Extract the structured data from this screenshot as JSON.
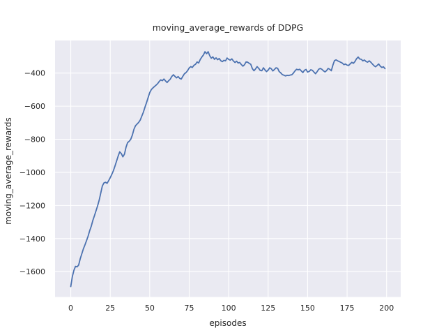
{
  "figure": {
    "background": "#ffffff"
  },
  "chart_data": {
    "type": "line",
    "title": "moving_average_rewards of DDPG",
    "xlabel": "episodes",
    "ylabel": "moving_average_rewards",
    "grid": true,
    "legend": false,
    "plot_bg": "#eaeaf2",
    "grid_color": "#ffffff",
    "text_color": "#262626",
    "line_color": "#4c72b0",
    "xlim": [
      -9.95,
      208.95
    ],
    "ylim": [
      -1753,
      -203
    ],
    "xticks": [
      0,
      25,
      50,
      75,
      100,
      125,
      150,
      175,
      200
    ],
    "yticks": [
      -400,
      -600,
      -800,
      -1000,
      -1200,
      -1400,
      -1600
    ],
    "x_note": "x values are episode indices 0..199",
    "series": [
      {
        "name": "moving_average_rewards",
        "x_start": 0,
        "x_step": 1,
        "values": [
          -1690,
          -1630,
          -1592,
          -1568,
          -1571,
          -1560,
          -1522,
          -1492,
          -1462,
          -1438,
          -1412,
          -1385,
          -1352,
          -1325,
          -1290,
          -1262,
          -1232,
          -1202,
          -1168,
          -1125,
          -1082,
          -1064,
          -1060,
          -1066,
          -1050,
          -1032,
          -1012,
          -990,
          -962,
          -932,
          -902,
          -876,
          -886,
          -906,
          -890,
          -848,
          -820,
          -812,
          -800,
          -775,
          -740,
          -718,
          -708,
          -698,
          -684,
          -660,
          -636,
          -606,
          -578,
          -548,
          -518,
          -500,
          -490,
          -481,
          -473,
          -464,
          -451,
          -441,
          -446,
          -436,
          -447,
          -457,
          -446,
          -437,
          -420,
          -410,
          -420,
          -429,
          -421,
          -432,
          -436,
          -419,
          -404,
          -397,
          -385,
          -369,
          -361,
          -366,
          -353,
          -347,
          -333,
          -339,
          -318,
          -303,
          -291,
          -271,
          -283,
          -271,
          -295,
          -310,
          -302,
          -317,
          -308,
          -319,
          -312,
          -325,
          -331,
          -323,
          -326,
          -309,
          -317,
          -322,
          -314,
          -327,
          -336,
          -328,
          -339,
          -336,
          -348,
          -358,
          -350,
          -333,
          -334,
          -341,
          -347,
          -373,
          -386,
          -375,
          -361,
          -371,
          -384,
          -386,
          -368,
          -381,
          -391,
          -382,
          -368,
          -374,
          -387,
          -378,
          -368,
          -371,
          -391,
          -399,
          -409,
          -413,
          -417,
          -414,
          -415,
          -412,
          -410,
          -400,
          -387,
          -377,
          -380,
          -377,
          -387,
          -397,
          -383,
          -378,
          -394,
          -390,
          -380,
          -383,
          -394,
          -404,
          -392,
          -377,
          -372,
          -377,
          -386,
          -393,
          -385,
          -372,
          -377,
          -386,
          -352,
          -325,
          -320,
          -326,
          -330,
          -335,
          -340,
          -349,
          -345,
          -352,
          -354,
          -344,
          -335,
          -341,
          -330,
          -313,
          -303,
          -315,
          -317,
          -326,
          -321,
          -330,
          -334,
          -326,
          -334,
          -345,
          -355,
          -362,
          -354,
          -345,
          -358,
          -366,
          -362,
          -373
        ]
      }
    ]
  }
}
